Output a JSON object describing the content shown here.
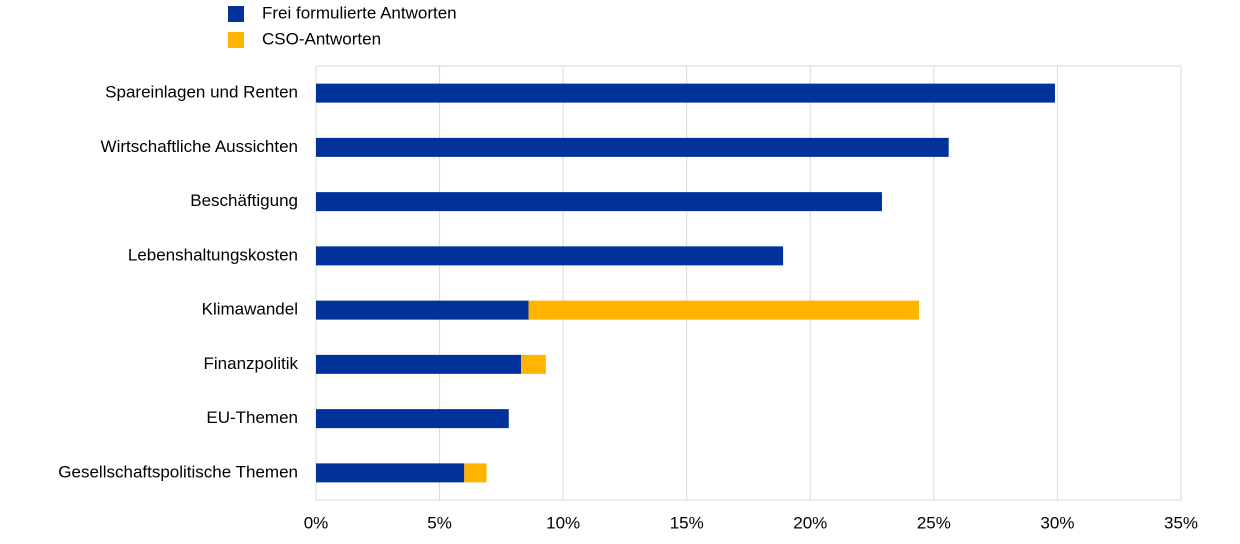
{
  "chart_data": {
    "type": "stacked-bar-horizontal",
    "categories": [
      "Spareinlagen und Renten",
      "Wirtschaftliche Aussichten",
      "Beschäftigung",
      "Lebenshaltungskosten",
      "Klimawandel",
      "Finanzpolitik",
      "EU-Themen",
      "Gesellschaftspolitische Themen"
    ],
    "series": [
      {
        "name": "Frei formulierte Antworten",
        "color": "#003299",
        "values": [
          29.9,
          25.6,
          22.9,
          18.9,
          8.6,
          8.3,
          7.8,
          6.0
        ]
      },
      {
        "name": "CSO-Antworten",
        "color": "#FFB400",
        "values": [
          0,
          0,
          0,
          0,
          15.8,
          1.0,
          0,
          0.9
        ]
      }
    ],
    "xlim": [
      0,
      35
    ],
    "xticks": [
      {
        "value": 0,
        "label": "0%"
      },
      {
        "value": 5,
        "label": "5%"
      },
      {
        "value": 10,
        "label": "10%"
      },
      {
        "value": 15,
        "label": "15%"
      },
      {
        "value": 20,
        "label": "20%"
      },
      {
        "value": 25,
        "label": "25%"
      },
      {
        "value": 30,
        "label": "30%"
      },
      {
        "value": 35,
        "label": "35%"
      }
    ],
    "grid": true,
    "legend": "top"
  }
}
